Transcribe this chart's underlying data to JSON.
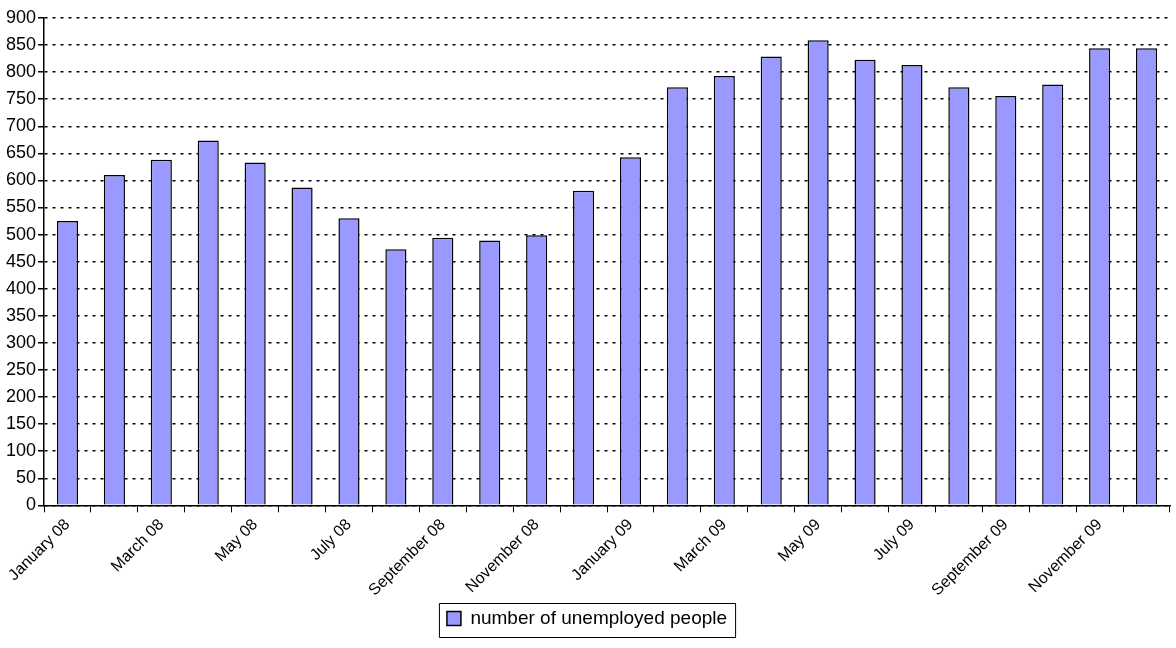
{
  "chart_data": {
    "type": "bar",
    "categories": [
      "January 08",
      null,
      "March 08",
      null,
      "May 08",
      null,
      "July 08",
      null,
      "September 08",
      null,
      "November 08",
      null,
      "January 09",
      null,
      "March 09",
      null,
      "May 09",
      null,
      "July 09",
      null,
      "September 09",
      null,
      "November 09",
      null
    ],
    "series": [
      {
        "name": "number of unemployed people",
        "color": "#9999ff",
        "values": [
          525,
          610,
          638,
          674,
          633,
          587,
          530,
          473,
          494,
          489,
          499,
          581,
          643,
          772,
          793,
          829,
          859,
          823,
          813,
          772,
          756,
          777,
          844,
          844
        ]
      }
    ],
    "ylim": [
      0,
      900
    ],
    "yticks": [
      0,
      50,
      100,
      150,
      200,
      250,
      300,
      350,
      400,
      450,
      500,
      550,
      600,
      650,
      700,
      750,
      800,
      850,
      900
    ],
    "grid": "y",
    "legend": "bottom"
  }
}
